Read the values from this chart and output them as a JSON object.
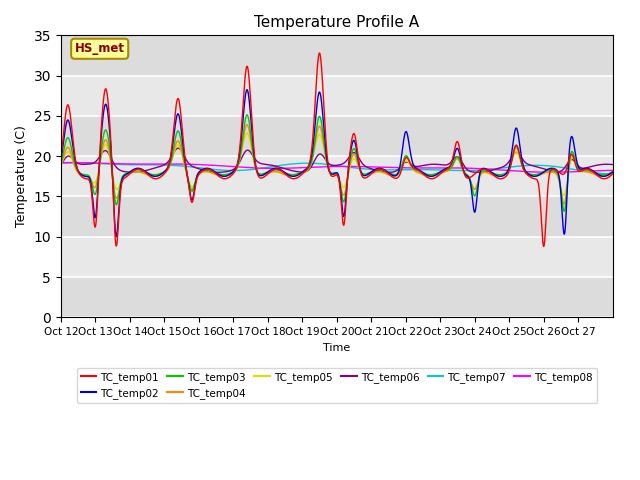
{
  "title": "Temperature Profile A",
  "xlabel": "Time",
  "ylabel": "Temperature (C)",
  "ylim": [
    0,
    35
  ],
  "yticks": [
    0,
    5,
    10,
    15,
    20,
    25,
    30,
    35
  ],
  "annotation_label": "HS_met",
  "legend_entries": [
    {
      "label": "TC_temp01",
      "color": "#FF0000"
    },
    {
      "label": "TC_temp02",
      "color": "#0000DD"
    },
    {
      "label": "TC_temp03",
      "color": "#00CC00"
    },
    {
      "label": "TC_temp04",
      "color": "#FF8800"
    },
    {
      "label": "TC_temp05",
      "color": "#DDDD00"
    },
    {
      "label": "TC_temp06",
      "color": "#880088"
    },
    {
      "label": "TC_temp07",
      "color": "#00CCCC"
    },
    {
      "label": "TC_temp08",
      "color": "#FF00FF"
    }
  ],
  "x_tick_labels": [
    "Oct 12",
    "Oct 13",
    "Oct 14",
    "Oct 15",
    "Oct 16",
    "Oct 17",
    "Oct 18",
    "Oct 19",
    "Oct 20",
    "Oct 21",
    "Oct 22",
    "Oct 23",
    "Oct 24",
    "Oct 25",
    "Oct 26",
    "Oct 27"
  ],
  "plot_bg_color": "#E8E8E8",
  "linewidth": 1.0,
  "n_days": 16
}
